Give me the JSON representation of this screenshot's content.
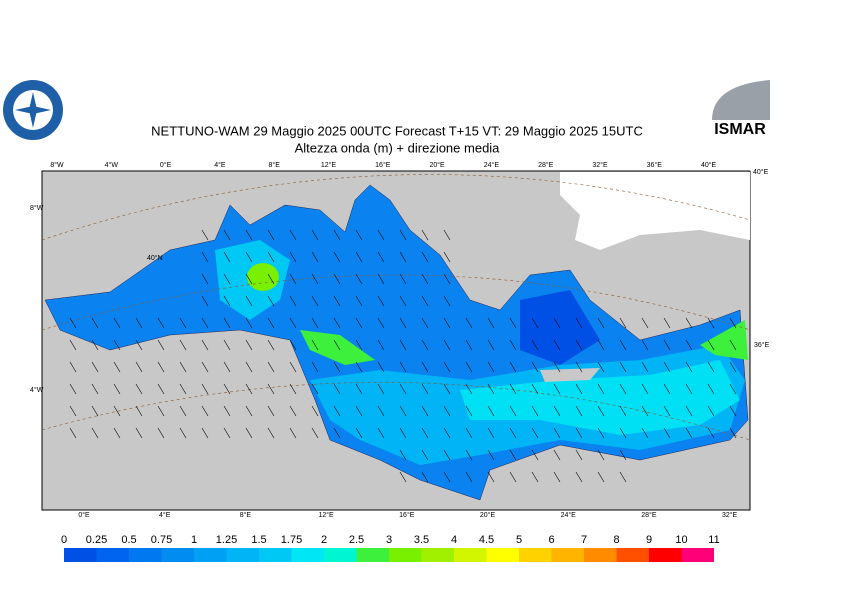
{
  "header": {
    "title": "NETTUNO-WAM  29   Maggio  2025 00UTC Forecast T+15 VT: 29   Maggio  2025 15UTC",
    "subtitle": "Altezza onda (m) + direzione media",
    "logo": "ISMAR"
  },
  "map": {
    "top_labels": [
      "8°W",
      "4°W",
      "0°E",
      "4°E",
      "8°E",
      "12°E",
      "16°E",
      "20°E",
      "24°E",
      "28°E",
      "32°E",
      "36°E",
      "40°E"
    ],
    "bottom_labels": [
      "0°E",
      "4°E",
      "8°E",
      "12°E",
      "16°E",
      "20°E",
      "24°E",
      "28°E",
      "32°E"
    ],
    "left_labels": [
      "8°W",
      "4°W"
    ],
    "inner_labels": [
      "40°N",
      "40°E",
      "36°E"
    ]
  },
  "legend": {
    "values": [
      0,
      0.25,
      0.5,
      0.75,
      1,
      1.25,
      1.5,
      1.75,
      2,
      2.5,
      3,
      3.5,
      4,
      4.5,
      5,
      6,
      7,
      8,
      9,
      10,
      11
    ],
    "colors": [
      "#0050e6",
      "#0064f0",
      "#0078f0",
      "#008cf0",
      "#00a0f5",
      "#00b4f5",
      "#00c8f5",
      "#00e6f5",
      "#00f5d2",
      "#3cf03c",
      "#78f000",
      "#a0f000",
      "#d2f500",
      "#ffff00",
      "#ffd200",
      "#ffb400",
      "#ff8c00",
      "#ff5000",
      "#ff0000",
      "#ff0078",
      "#ff00c8"
    ]
  }
}
